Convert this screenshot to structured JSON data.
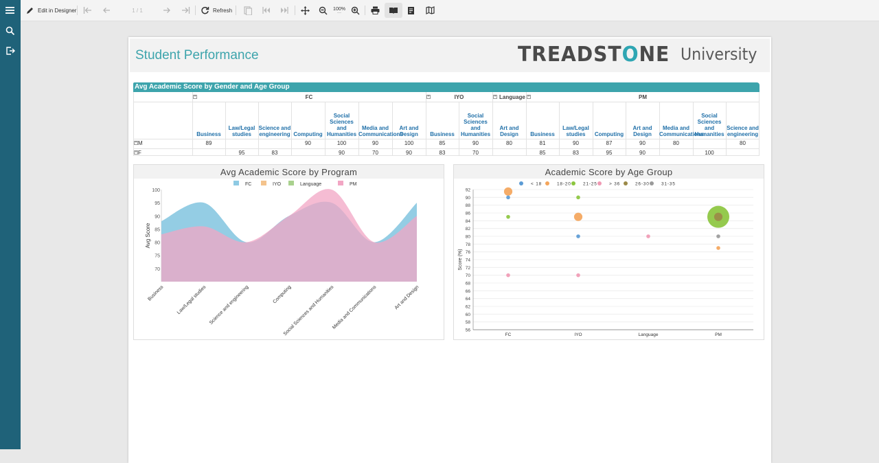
{
  "toolbar": {
    "edit_label": "Edit in Designer",
    "page_indicator": "1 / 1",
    "refresh_label": "Refresh",
    "zoom_value": "100%"
  },
  "report": {
    "title": "Student Performance",
    "logo": {
      "name": "TREADSTONE",
      "suffix": "University",
      "accent": "#2fa6b3"
    }
  },
  "table": {
    "title": "Avg Academic Score by Gender and Age Group",
    "groups": [
      {
        "name": "FC",
        "columns": [
          "Business",
          "Law/Legal studies",
          "Science and engineering",
          "Computing",
          "Social Sciences and Humanities",
          "Media and Communications",
          "Art and Design"
        ]
      },
      {
        "name": "IYO",
        "columns": [
          "Business",
          "Social Sciences and Humanities"
        ]
      },
      {
        "name": "Language",
        "columns": [
          "Art and Design"
        ]
      },
      {
        "name": "PM",
        "columns": [
          "Business",
          "Law/Legal studies",
          "Computing",
          "Art and Design",
          "Media and Communications",
          "Social Sciences and Humanities",
          "Science and engineering"
        ]
      }
    ],
    "rows": [
      {
        "label": "M",
        "cells": [
          "89",
          "",
          "",
          "90",
          "100",
          "90",
          "100",
          "85",
          "90",
          "80",
          "81",
          "90",
          "87",
          "90",
          "80",
          "",
          "80"
        ]
      },
      {
        "label": "F",
        "cells": [
          "",
          "95",
          "83",
          "",
          "90",
          "70",
          "90",
          "83",
          "70",
          "",
          "85",
          "83",
          "95",
          "90",
          "",
          "100",
          ""
        ]
      }
    ]
  },
  "chart1_title": "Avg Academic Score by Program",
  "chart2_title": "Academic Score by Age Group",
  "chart_data": [
    {
      "type": "area",
      "title": "Avg Academic Score by Program",
      "ylabel": "Avg Score",
      "xlabel": "",
      "categories": [
        "Business",
        "Law/Legal studies",
        "Science and engineering",
        "Computing",
        "Social Sciences and Humanities",
        "Media and Communications",
        "Art and Design"
      ],
      "ylim": [
        65,
        100
      ],
      "yticks": [
        70,
        75,
        80,
        85,
        90,
        95,
        100
      ],
      "legend_position": "top",
      "grid": false,
      "series": [
        {
          "name": "FC",
          "color": "#8ecae3",
          "values": [
            88,
            95,
            80,
            90,
            95,
            80,
            95
          ]
        },
        {
          "name": "IYO",
          "color": "#f4c38c",
          "values": [
            null,
            null,
            null,
            null,
            null,
            null,
            null
          ]
        },
        {
          "name": "Language",
          "color": "#a9d18e",
          "values": [
            null,
            null,
            null,
            null,
            null,
            null,
            null
          ]
        },
        {
          "name": "PM",
          "color": "#f2a6c4",
          "values": [
            83,
            86,
            80,
            90,
            100,
            80,
            90
          ]
        }
      ]
    },
    {
      "type": "scatter",
      "title": "Academic Score by Age Group",
      "ylabel": "Score (%)",
      "xlabel": "",
      "categories": [
        "FC",
        "IYO",
        "Language",
        "PM"
      ],
      "ylim": [
        56,
        92
      ],
      "yticks": [
        56,
        58,
        60,
        62,
        64,
        66,
        68,
        70,
        72,
        74,
        76,
        78,
        80,
        82,
        84,
        86,
        88,
        90,
        92
      ],
      "legend_position": "top",
      "grid": true,
      "series": [
        {
          "name": "< 18",
          "color": "#5b9bd5",
          "points": [
            {
              "x": "FC",
              "y": 90,
              "size": 1
            },
            {
              "x": "IYO",
              "y": 80,
              "size": 1
            }
          ]
        },
        {
          "name": "18-20",
          "color": "#f4a55b",
          "points": [
            {
              "x": "FC",
              "y": 91.5,
              "size": 2
            },
            {
              "x": "IYO",
              "y": 85,
              "size": 2
            },
            {
              "x": "PM",
              "y": 77,
              "size": 1
            }
          ]
        },
        {
          "name": "21-25",
          "color": "#8cc63f",
          "points": [
            {
              "x": "FC",
              "y": 85,
              "size": 1
            },
            {
              "x": "IYO",
              "y": 90,
              "size": 1
            },
            {
              "x": "PM",
              "y": 85,
              "size": 5
            }
          ]
        },
        {
          "name": "> 36",
          "color": "#f09ab4",
          "points": [
            {
              "x": "FC",
              "y": 70,
              "size": 1
            },
            {
              "x": "IYO",
              "y": 70,
              "size": 1
            },
            {
              "x": "Language",
              "y": 80,
              "size": 1
            }
          ]
        },
        {
          "name": "26-30",
          "color": "#9b8a48",
          "points": [
            {
              "x": "PM",
              "y": 85,
              "size": 2
            }
          ]
        },
        {
          "name": "31-35",
          "color": "#9a9a9a",
          "points": [
            {
              "x": "PM",
              "y": 80,
              "size": 1
            }
          ]
        }
      ]
    }
  ]
}
